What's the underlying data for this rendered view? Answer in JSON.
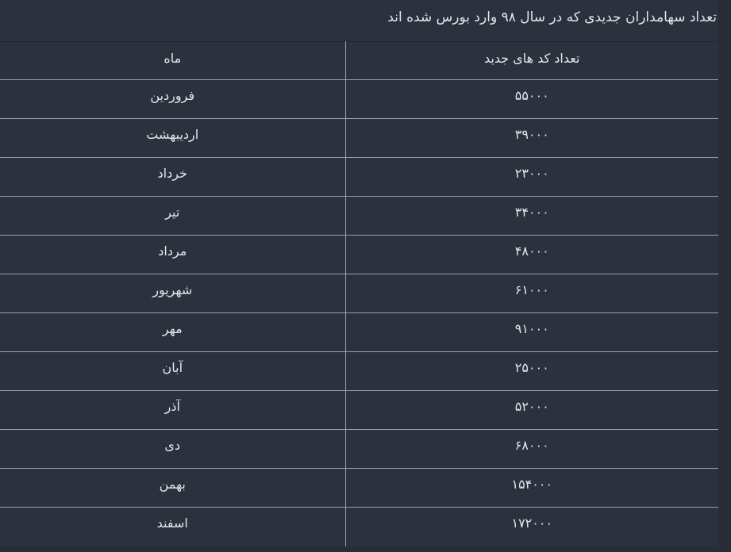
{
  "colors": {
    "page_background": "#272d36",
    "surface_background": "#2b323d",
    "text": "#e3e7eb",
    "divider": "#99a1ab",
    "table_top_border": "#20262e"
  },
  "title": "تعداد سهامداران جدیدی که در سال ۹۸ وارد بورس شده اند",
  "table": {
    "headers": {
      "month": "ماه",
      "count": "تعداد کد های جدید"
    },
    "rows": [
      {
        "month": "فروردین",
        "count": "۵۵۰۰۰"
      },
      {
        "month": "اردیبهشت",
        "count": "۳۹۰۰۰"
      },
      {
        "month": "خرداد",
        "count": "۲۳۰۰۰"
      },
      {
        "month": "تیر",
        "count": "۳۴۰۰۰"
      },
      {
        "month": "مرداد",
        "count": "۴۸۰۰۰"
      },
      {
        "month": "شهریور",
        "count": "۶۱۰۰۰"
      },
      {
        "month": "مهر",
        "count": "۹۱۰۰۰"
      },
      {
        "month": "آبان",
        "count": "۲۵۰۰۰"
      },
      {
        "month": "آذر",
        "count": "۵۲۰۰۰"
      },
      {
        "month": "دی",
        "count": "۶۸۰۰۰"
      },
      {
        "month": "بهمن",
        "count": "۱۵۴۰۰۰"
      },
      {
        "month": "اسفند",
        "count": "۱۷۲۰۰۰"
      }
    ]
  },
  "chart_data": {
    "type": "table",
    "title": "تعداد سهامداران جدیدی که در سال ۹۸ وارد بورس شده اند",
    "columns": [
      "ماه",
      "تعداد کد های جدید"
    ],
    "categories": [
      "فروردین",
      "اردیبهشت",
      "خرداد",
      "تیر",
      "مرداد",
      "شهریور",
      "مهر",
      "آبان",
      "آذر",
      "دی",
      "بهمن",
      "اسفند"
    ],
    "values": [
      55000,
      39000,
      23000,
      34000,
      48000,
      61000,
      91000,
      25000,
      52000,
      68000,
      154000,
      172000
    ],
    "values_display": [
      "۵۵۰۰۰",
      "۳۹۰۰۰",
      "۲۳۰۰۰",
      "۳۴۰۰۰",
      "۴۸۰۰۰",
      "۶۱۰۰۰",
      "۹۱۰۰۰",
      "۲۵۰۰۰",
      "۵۲۰۰۰",
      "۶۸۰۰۰",
      "۱۵۴۰۰۰",
      "۱۷۲۰۰۰"
    ],
    "layout": {
      "direction": "rtl",
      "value_column_side": "right",
      "month_column_side": "left",
      "grid": true
    }
  }
}
